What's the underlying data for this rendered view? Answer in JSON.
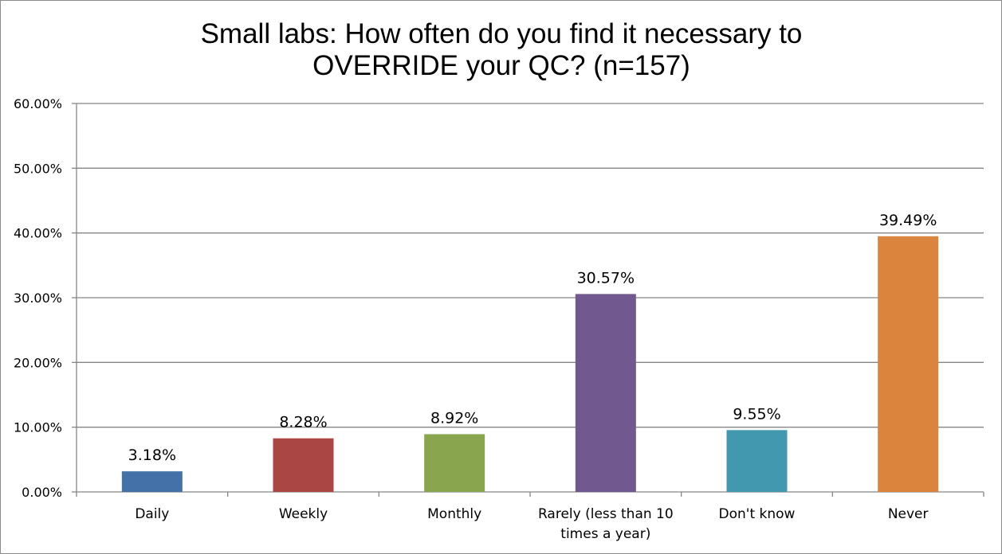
{
  "chart_data": {
    "type": "bar",
    "title": "Small labs: How often do you find it necessary to OVERRIDE your QC? (n=157)",
    "title_lines": [
      "Small labs: How often do you find it necessary to",
      "OVERRIDE your QC? (n=157)"
    ],
    "categories": [
      "Daily",
      "Weekly",
      "Monthly",
      "Rarely (less than 10 times a year)",
      "Don't know",
      "Never"
    ],
    "category_lines": [
      [
        "Daily"
      ],
      [
        "Weekly"
      ],
      [
        "Monthly"
      ],
      [
        "Rarely (less than 10",
        "times a year)"
      ],
      [
        "Don't know"
      ],
      [
        "Never"
      ]
    ],
    "values": [
      3.18,
      8.28,
      8.92,
      30.57,
      9.55,
      39.49
    ],
    "data_labels": [
      "3.18%",
      "8.28%",
      "8.92%",
      "30.57%",
      "9.55%",
      "39.49%"
    ],
    "colors": [
      "#4472a8",
      "#aa4644",
      "#89a54e",
      "#71588f",
      "#4198af",
      "#db843d"
    ],
    "ylim": [
      0,
      60
    ],
    "yticks": [
      0,
      10,
      20,
      30,
      40,
      50,
      60
    ],
    "ytick_labels": [
      "0.00%",
      "10.00%",
      "20.00%",
      "30.00%",
      "40.00%",
      "50.00%",
      "60.00%"
    ],
    "xlabel": "",
    "ylabel": "",
    "grid": true,
    "legend": "none"
  }
}
